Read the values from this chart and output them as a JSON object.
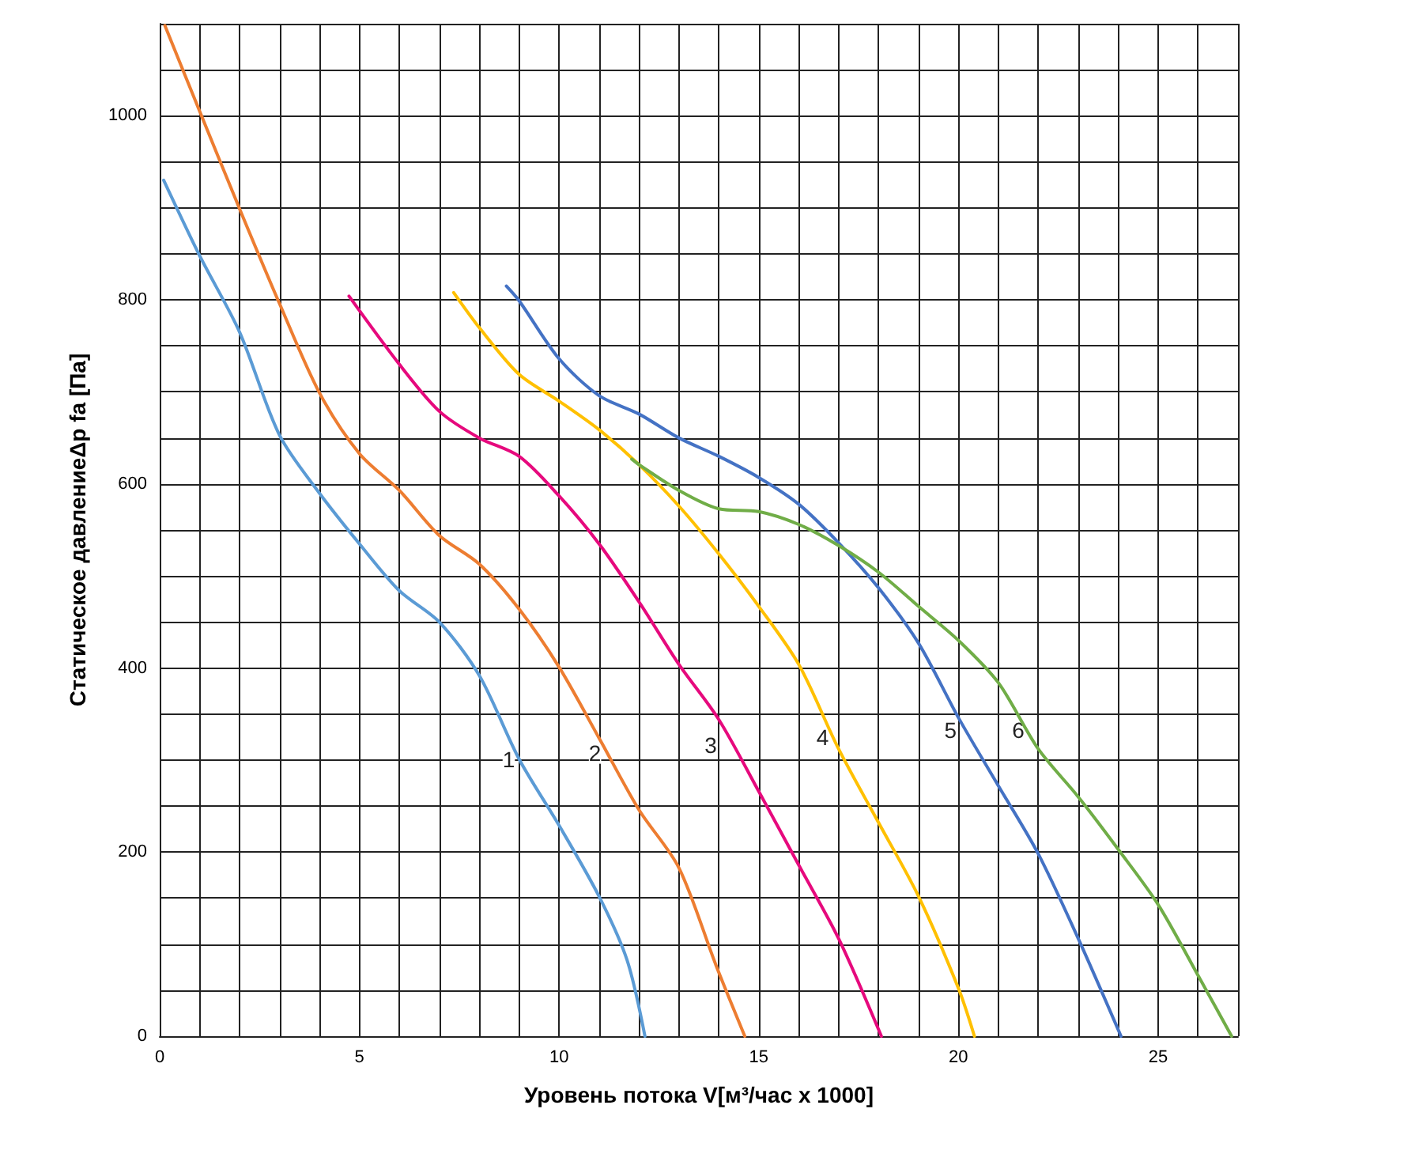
{
  "chart_data": {
    "type": "line",
    "xlabel": "Уровень потока V[м³/час x 1000]",
    "ylabel": "Статическое давлениеΔp fa [Па]",
    "xlim": [
      0,
      27
    ],
    "ylim": [
      0,
      1100
    ],
    "xticks": [
      0,
      {
        "value": 1,
        "label": null
      },
      {
        "value": 2,
        "label": null
      },
      {
        "value": 3,
        "label": null
      },
      {
        "value": 4,
        "label": null
      },
      5,
      {
        "value": 6,
        "label": null
      },
      {
        "value": 7,
        "label": null
      },
      {
        "value": 8,
        "label": null
      },
      {
        "value": 9,
        "label": null
      },
      10,
      {
        "value": 11,
        "label": null
      },
      {
        "value": 12,
        "label": null
      },
      {
        "value": 13,
        "label": null
      },
      {
        "value": 14,
        "label": null
      },
      15,
      {
        "value": 16,
        "label": null
      },
      {
        "value": 17,
        "label": null
      },
      {
        "value": 18,
        "label": null
      },
      {
        "value": 19,
        "label": null
      },
      20,
      {
        "value": 21,
        "label": null
      },
      {
        "value": 22,
        "label": null
      },
      {
        "value": 23,
        "label": null
      },
      {
        "value": 24,
        "label": null
      },
      25,
      {
        "value": 26,
        "label": null
      },
      {
        "value": 27,
        "label": null
      }
    ],
    "yticks": [
      0,
      {
        "value": 50,
        "label": null
      },
      {
        "value": 100,
        "label": null
      },
      {
        "value": 150,
        "label": null
      },
      200,
      {
        "value": 250,
        "label": null
      },
      {
        "value": 300,
        "label": null
      },
      {
        "value": 350,
        "label": null
      },
      400,
      {
        "value": 450,
        "label": null
      },
      {
        "value": 500,
        "label": null
      },
      {
        "value": 550,
        "label": null
      },
      600,
      {
        "value": 650,
        "label": null
      },
      {
        "value": 700,
        "label": null
      },
      {
        "value": 750,
        "label": null
      },
      800,
      {
        "value": 850,
        "label": null
      },
      {
        "value": 900,
        "label": null
      },
      {
        "value": 950,
        "label": null
      },
      1000,
      {
        "value": 1050,
        "label": null
      },
      {
        "value": 1100,
        "label": null
      }
    ],
    "grid": true,
    "marker": "none",
    "line_style": "solid",
    "series": [
      {
        "color": "#5b9bd5",
        "x": [
          0.1,
          1,
          2,
          3,
          4,
          5,
          6,
          7,
          8,
          9,
          10,
          11,
          11.7,
          12.15
        ],
        "values": [
          930,
          848,
          765,
          653,
          590,
          535,
          484,
          450,
          392,
          301,
          229,
          152,
          83,
          0
        ]
      },
      {
        "color": "#ed7d31",
        "x": [
          0.13,
          1,
          2,
          3,
          4,
          5,
          6,
          7,
          8,
          9,
          10,
          11,
          12,
          13,
          13.93,
          14.65
        ],
        "values": [
          1098,
          1005,
          899,
          796,
          699,
          633,
          593,
          544,
          513,
          464,
          401,
          324,
          246,
          183,
          77,
          0
        ]
      },
      {
        "color": "#e6097d",
        "x": [
          4.74,
          6,
          7,
          8,
          9,
          10,
          11,
          12,
          13,
          14,
          15,
          16,
          17,
          18.07
        ],
        "values": [
          804,
          730,
          679,
          650,
          630,
          587,
          535,
          472,
          404,
          344,
          266,
          186,
          106,
          0
        ]
      },
      {
        "color": "#ffc000",
        "x": [
          7.36,
          8,
          9,
          10,
          11,
          12,
          13,
          14,
          15,
          16,
          17,
          18,
          19,
          20,
          20.4
        ],
        "values": [
          808,
          770,
          719,
          690,
          659,
          621,
          576,
          524,
          467,
          404,
          312,
          232,
          152,
          52,
          0
        ]
      },
      {
        "color": "#4472c4",
        "x": [
          8.68,
          9,
          10,
          11,
          12,
          13,
          14,
          15,
          16,
          17,
          18,
          19,
          20,
          21,
          22,
          23,
          24.07
        ],
        "values": [
          815,
          799,
          736,
          696,
          676,
          650,
          630,
          607,
          578,
          536,
          487,
          427,
          346,
          272,
          198,
          106,
          0
        ]
      },
      {
        "color": "#70ad47",
        "x": [
          11.82,
          12,
          13,
          14,
          15,
          16,
          17,
          18,
          19,
          20,
          21,
          22,
          23,
          24,
          25,
          26,
          26.84
        ],
        "values": [
          627,
          621,
          593,
          573,
          570,
          556,
          533,
          504,
          467,
          430,
          384,
          312,
          260,
          203,
          143,
          66,
          0
        ]
      }
    ],
    "annotations": [
      {
        "text": "1",
        "x": 8.74,
        "y": 301
      },
      {
        "text": "2",
        "x": 10.9,
        "y": 308
      },
      {
        "text": "3",
        "x": 13.8,
        "y": 316
      },
      {
        "text": "4",
        "x": 16.6,
        "y": 325
      },
      {
        "text": "5",
        "x": 19.8,
        "y": 333
      },
      {
        "text": "6",
        "x": 21.5,
        "y": 333
      }
    ]
  }
}
